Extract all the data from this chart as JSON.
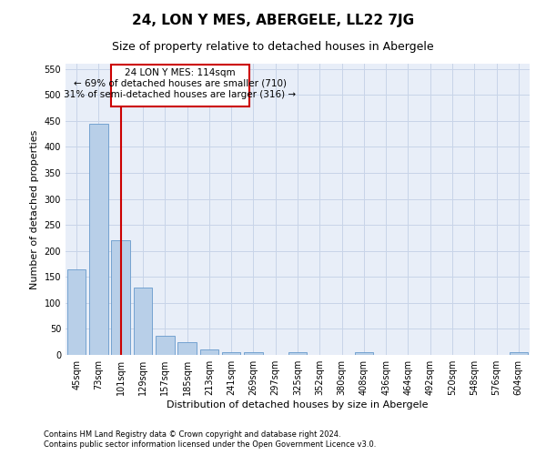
{
  "title": "24, LON Y MES, ABERGELE, LL22 7JG",
  "subtitle": "Size of property relative to detached houses in Abergele",
  "xlabel": "Distribution of detached houses by size in Abergele",
  "ylabel": "Number of detached properties",
  "footer_line1": "Contains HM Land Registry data © Crown copyright and database right 2024.",
  "footer_line2": "Contains public sector information licensed under the Open Government Licence v3.0.",
  "categories": [
    "45sqm",
    "73sqm",
    "101sqm",
    "129sqm",
    "157sqm",
    "185sqm",
    "213sqm",
    "241sqm",
    "269sqm",
    "297sqm",
    "325sqm",
    "352sqm",
    "380sqm",
    "408sqm",
    "436sqm",
    "464sqm",
    "492sqm",
    "520sqm",
    "548sqm",
    "576sqm",
    "604sqm"
  ],
  "values": [
    165,
    445,
    220,
    130,
    37,
    25,
    10,
    5,
    5,
    0,
    5,
    0,
    0,
    5,
    0,
    0,
    0,
    0,
    0,
    0,
    5
  ],
  "bar_color": "#b8cfe8",
  "bar_edge_color": "#6699cc",
  "highlight_bar_index": 2,
  "highlight_line_color": "#cc0000",
  "annotation_text_line1": "24 LON Y MES: 114sqm",
  "annotation_text_line2": "← 69% of detached houses are smaller (710)",
  "annotation_text_line3": "31% of semi-detached houses are larger (316) →",
  "annotation_box_color": "#cc0000",
  "ylim": [
    0,
    560
  ],
  "yticks": [
    0,
    50,
    100,
    150,
    200,
    250,
    300,
    350,
    400,
    450,
    500,
    550
  ],
  "bg_axes": "#e8eef8",
  "background_color": "#ffffff",
  "grid_color": "#c8d4e8",
  "title_fontsize": 11,
  "subtitle_fontsize": 9,
  "axis_label_fontsize": 8,
  "tick_fontsize": 7,
  "annotation_fontsize": 7.5,
  "footer_fontsize": 6
}
